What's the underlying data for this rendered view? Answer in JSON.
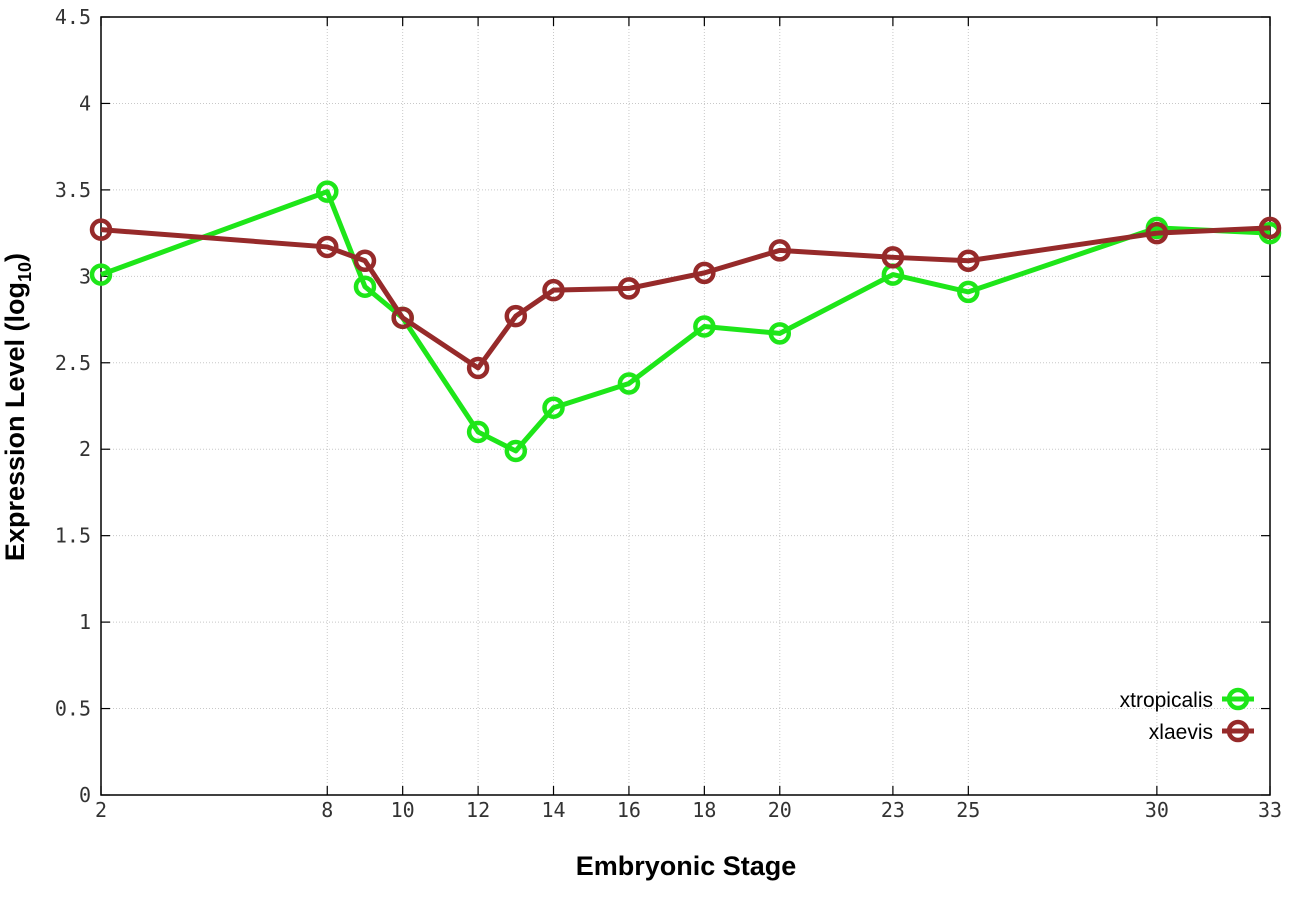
{
  "chart_data": {
    "type": "line",
    "xlabel": "Embryonic Stage",
    "ylabel_main": "Expression Level (log",
    "ylabel_sub": "10",
    "ylabel_close": ")",
    "x_ticks": [
      2,
      8,
      10,
      12,
      14,
      16,
      18,
      20,
      23,
      25,
      30,
      33
    ],
    "y_ticks": [
      "0",
      "0.5",
      "1",
      "1.5",
      "2",
      "2.5",
      "3",
      "3.5",
      "4",
      "4.5"
    ],
    "ylim": [
      0,
      4.5
    ],
    "xlim": [
      2,
      33
    ],
    "grid": true,
    "legend_position": "bottom-right",
    "series": [
      {
        "name": "xtropicalis",
        "color": "#1ee619",
        "x": [
          2,
          8,
          9,
          10,
          12,
          13,
          14,
          16,
          18,
          20,
          23,
          25,
          30,
          33
        ],
        "y": [
          3.01,
          3.49,
          2.94,
          2.76,
          2.1,
          1.99,
          2.24,
          2.38,
          2.71,
          2.67,
          3.01,
          2.91,
          3.28,
          3.25
        ]
      },
      {
        "name": "xlaevis",
        "color": "#962a2a",
        "x": [
          2,
          8,
          9,
          10,
          12,
          13,
          14,
          16,
          18,
          20,
          23,
          25,
          30,
          33
        ],
        "y": [
          3.27,
          3.17,
          3.09,
          2.76,
          2.47,
          2.77,
          2.92,
          2.93,
          3.02,
          3.15,
          3.11,
          3.09,
          3.25,
          3.28
        ]
      }
    ]
  }
}
